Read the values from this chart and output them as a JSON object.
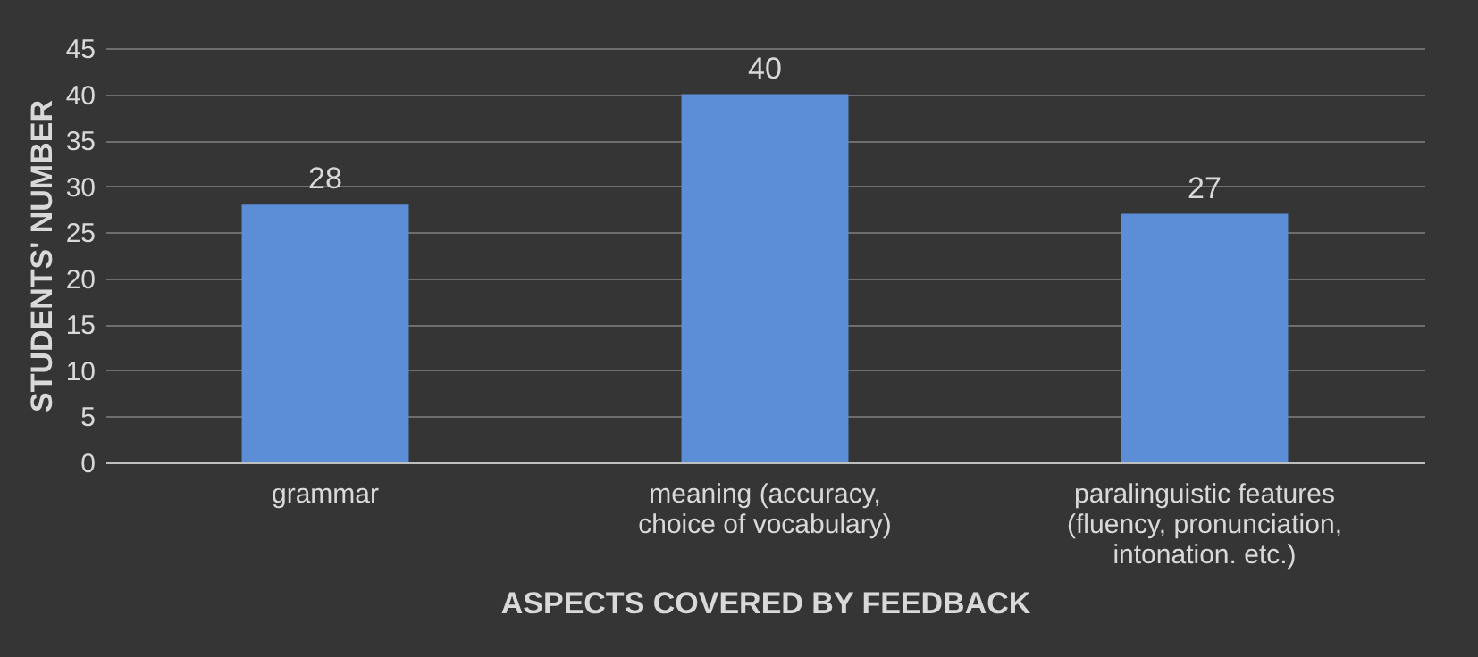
{
  "chart_data": {
    "type": "bar",
    "xlabel": "ASPECTS COVERED BY FEEDBACK",
    "ylabel": "STUDENTS' NUMBER",
    "categories": [
      "grammar",
      "meaning (accuracy, choice of vocabulary)",
      "paralinguistic features (fluency, pronunciation, intonation. etc.)"
    ],
    "values": [
      28,
      40,
      27
    ],
    "color": "#5b8ed6",
    "ylim": [
      0,
      45
    ],
    "yticks": [
      0,
      5,
      10,
      15,
      20,
      25,
      30,
      35,
      40,
      45
    ],
    "grid": "y",
    "data_labels": true
  }
}
